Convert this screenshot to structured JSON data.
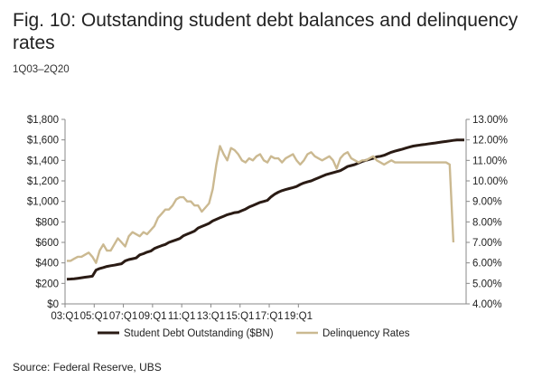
{
  "header": {
    "title": "Fig. 10: Outstanding student debt balances and delinquency rates",
    "subtitle": "1Q03–2Q20"
  },
  "footer": {
    "source": "Source: Federal Reserve, UBS"
  },
  "colors": {
    "debt": "#2a1b14",
    "delinquency": "#cbb991",
    "axis": "#888888"
  },
  "chart_data": {
    "type": "line",
    "title": "Fig. 10: Outstanding student debt balances and delinquency rates",
    "subtitle": "1Q03–2Q20",
    "x_start_label": "03:Q1",
    "x_tick_labels": [
      "03:Q1",
      "05:Q1",
      "07:Q1",
      "09:Q1",
      "11:Q1",
      "13:Q1",
      "15:Q1",
      "17:Q1",
      "19:Q1"
    ],
    "left_axis": {
      "ylim": [
        0,
        1800
      ],
      "ticks": [
        0,
        200,
        400,
        600,
        800,
        1000,
        1200,
        1400,
        1600,
        1800
      ],
      "tick_labels": [
        "$0",
        "$200",
        "$400",
        "$600",
        "$800",
        "$1,000",
        "$1,200",
        "$1,400",
        "$1,600",
        "$1,800"
      ]
    },
    "right_axis": {
      "ylim": [
        4.0,
        13.0
      ],
      "ticks": [
        4,
        5,
        6,
        7,
        8,
        9,
        10,
        11,
        12,
        13
      ],
      "tick_labels": [
        "4.00%",
        "5.00%",
        "6.00%",
        "7.00%",
        "8.00%",
        "9.00%",
        "10.00%",
        "11.00%",
        "12.00%",
        "13.00%"
      ]
    },
    "grid": false,
    "legend_position": "bottom",
    "series": [
      {
        "name": "Student Debt Outstanding ($BN)",
        "axis": "left",
        "values": [
          241,
          243,
          245,
          250,
          255,
          260,
          265,
          270,
          330,
          345,
          355,
          365,
          372,
          378,
          385,
          392,
          420,
          432,
          440,
          448,
          478,
          490,
          505,
          515,
          540,
          555,
          568,
          580,
          600,
          612,
          625,
          638,
          665,
          680,
          695,
          710,
          740,
          755,
          770,
          785,
          810,
          825,
          840,
          855,
          870,
          880,
          890,
          895,
          910,
          925,
          945,
          960,
          975,
          990,
          1000,
          1010,
          1045,
          1070,
          1090,
          1105,
          1115,
          1125,
          1135,
          1145,
          1165,
          1180,
          1190,
          1200,
          1215,
          1230,
          1245,
          1260,
          1270,
          1280,
          1290,
          1300,
          1320,
          1340,
          1350,
          1360,
          1375,
          1390,
          1400,
          1410,
          1420,
          1435,
          1440,
          1450,
          1465,
          1480,
          1490,
          1500,
          1510,
          1520,
          1530,
          1540,
          1545,
          1550,
          1555,
          1560,
          1565,
          1570,
          1575,
          1580,
          1585,
          1590,
          1595,
          1600,
          1600,
          1600
        ]
      },
      {
        "name": "Delinquency Rates",
        "axis": "right",
        "values": [
          6.1,
          6.1,
          6.2,
          6.3,
          6.3,
          6.4,
          6.5,
          6.3,
          6.0,
          6.6,
          6.9,
          6.6,
          6.6,
          6.9,
          7.2,
          7.0,
          6.8,
          7.3,
          7.5,
          7.4,
          7.3,
          7.5,
          7.4,
          7.6,
          7.8,
          8.2,
          8.4,
          8.6,
          8.6,
          8.8,
          9.1,
          9.2,
          9.2,
          9.0,
          9.0,
          8.8,
          8.8,
          8.5,
          8.7,
          8.9,
          9.6,
          10.8,
          11.7,
          11.3,
          11.0,
          11.6,
          11.5,
          11.3,
          11.0,
          10.9,
          11.1,
          11.0,
          11.2,
          11.3,
          11.0,
          10.9,
          11.2,
          11.1,
          11.1,
          10.9,
          11.1,
          11.2,
          11.3,
          11.0,
          10.8,
          11.0,
          11.3,
          11.4,
          11.2,
          11.1,
          11.0,
          11.1,
          11.2,
          11.0,
          10.6,
          11.1,
          11.3,
          11.4,
          11.1,
          11.0,
          10.9,
          11.0,
          11.0,
          11.1,
          11.2,
          11.0,
          10.9,
          10.8,
          10.9,
          11.0,
          10.9,
          10.9,
          10.9,
          10.9,
          10.9,
          10.9,
          10.9,
          10.9,
          10.9,
          10.9,
          10.9,
          10.9,
          10.9,
          10.9,
          10.9,
          10.8,
          7.0
        ]
      }
    ]
  }
}
